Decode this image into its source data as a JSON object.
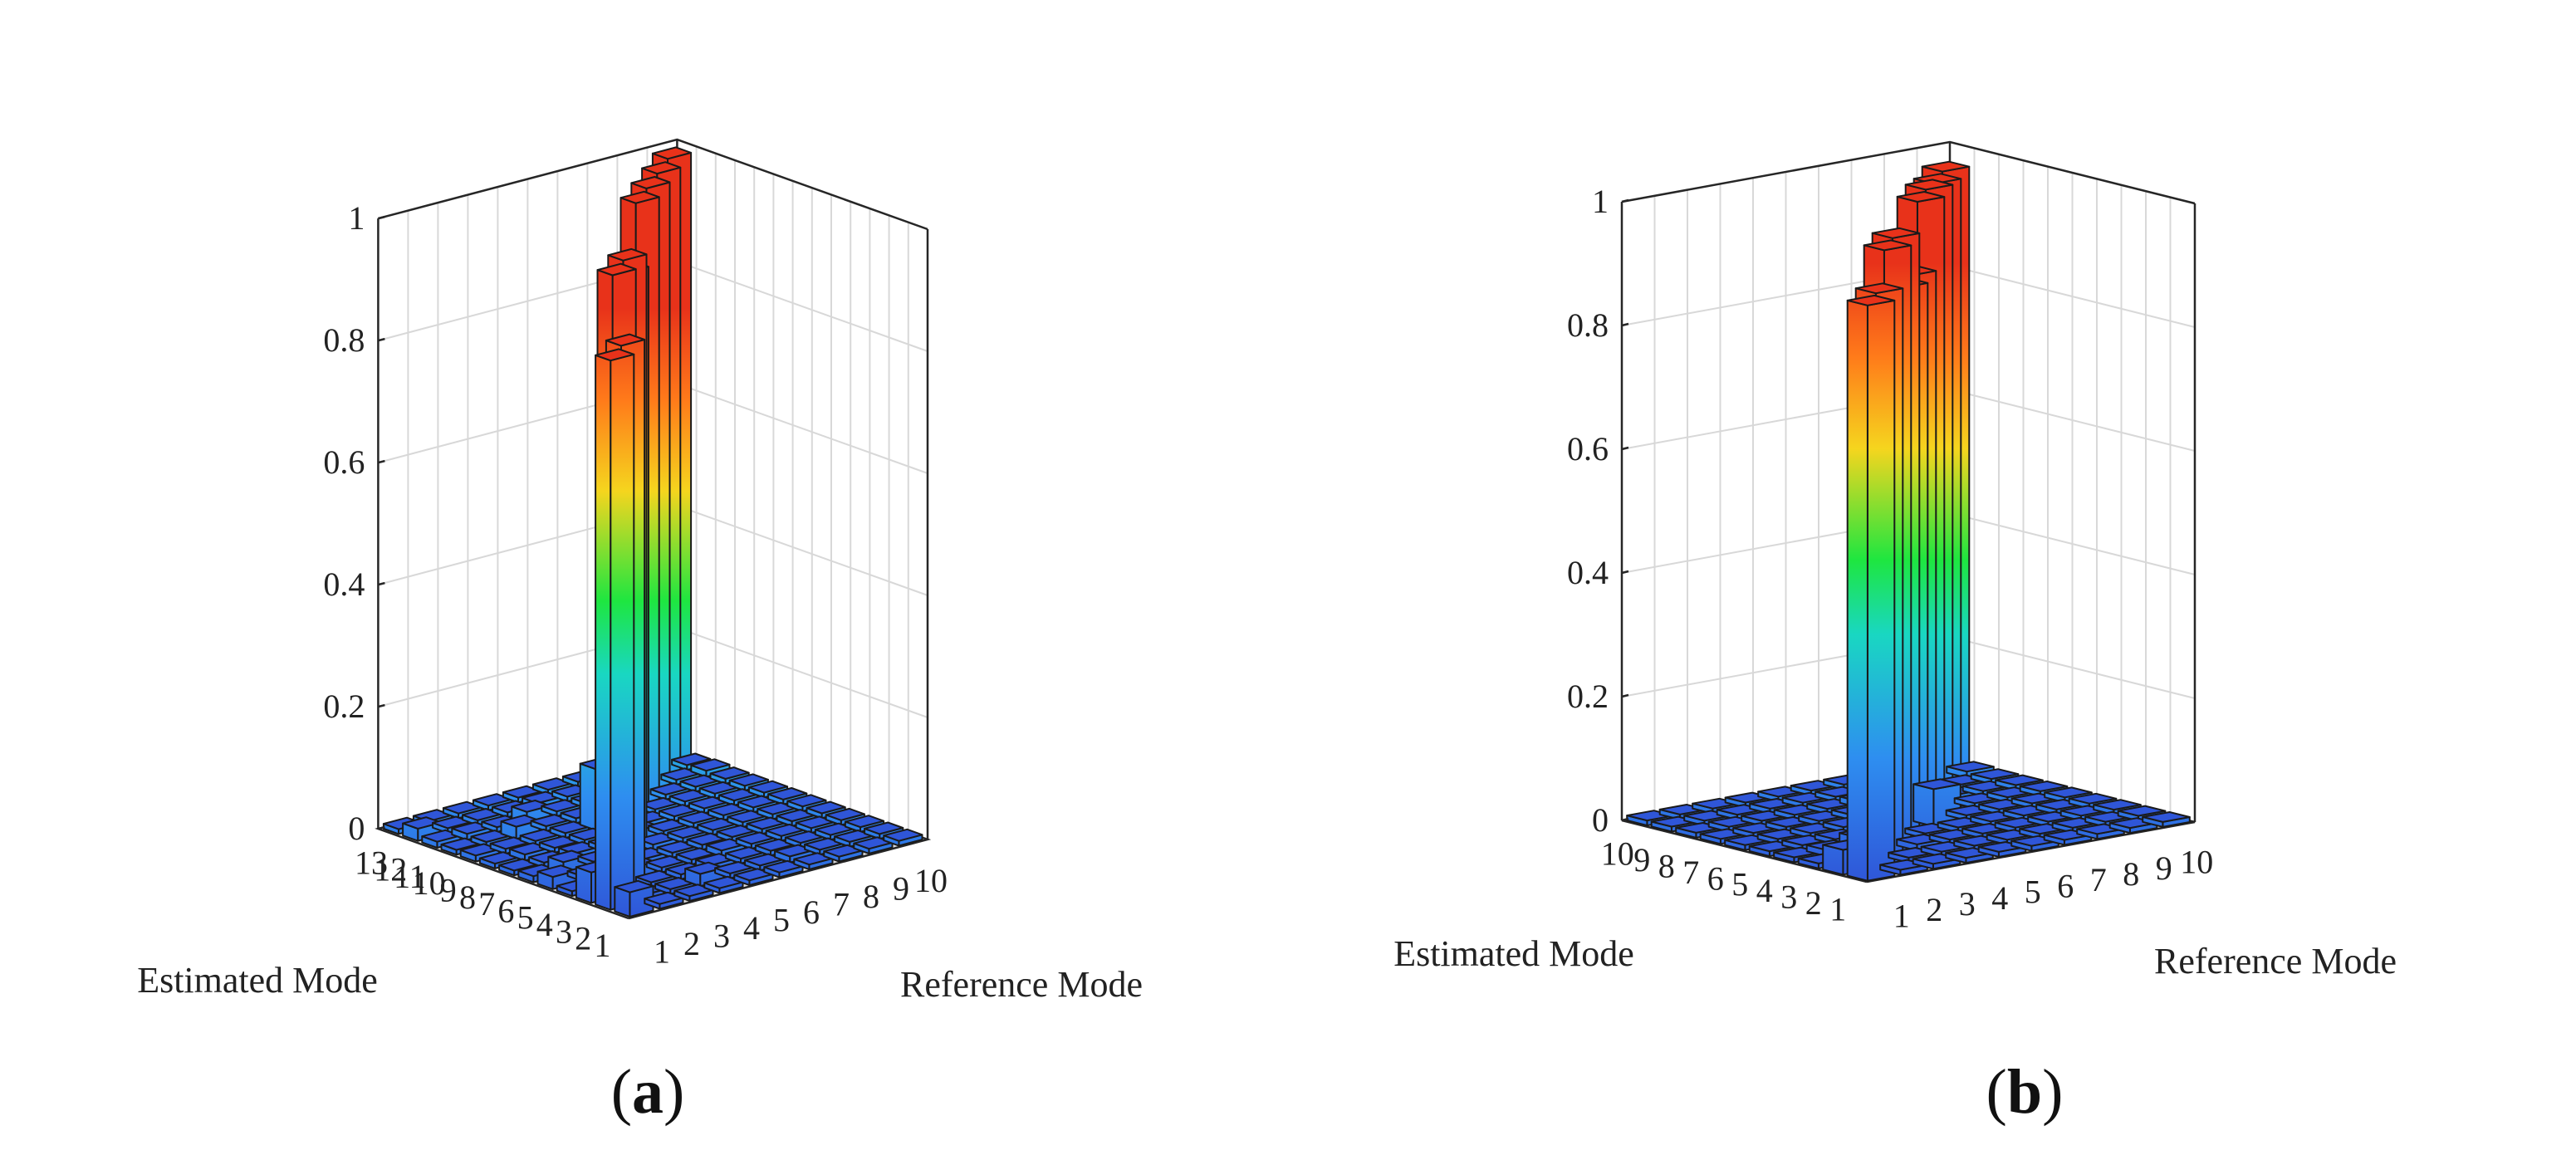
{
  "figure": {
    "panels": [
      {
        "label_open": "(",
        "letter": "a",
        "label_close": ")"
      },
      {
        "label_open": "(",
        "letter": "b",
        "label_close": ")"
      }
    ]
  },
  "colors": {
    "bar_top": "#e8321a",
    "bar_high": "#ff7a1a",
    "bar_mid_high": "#f5d51e",
    "bar_mid": "#1ee640",
    "bar_mid_low": "#19d7c2",
    "bar_low": "#2e8ef0",
    "bar_base": "#2f56d8"
  },
  "chart_data": [
    {
      "type": "bar3d",
      "panel": "a",
      "xlabel": "Estimated Mode",
      "ylabel": "Reference Mode",
      "zlim": [
        0,
        1
      ],
      "zticks": [
        "0",
        "0.2",
        "0.4",
        "0.6",
        "0.8",
        "1"
      ],
      "estimated_modes": [
        "1",
        "2",
        "3",
        "4",
        "5",
        "6",
        "7",
        "8",
        "9",
        "10",
        "11",
        "12",
        "13"
      ],
      "reference_modes": [
        "1",
        "2",
        "3",
        "4",
        "5",
        "6",
        "7",
        "8",
        "9",
        "10"
      ],
      "values": [
        [
          0.04,
          0.0,
          0.0,
          0.0,
          0.0,
          0.0,
          0.0,
          0.0,
          0.0,
          0.0
        ],
        [
          0.9,
          0.01,
          0.0,
          0.02,
          0.0,
          0.0,
          0.01,
          0.0,
          0.0,
          0.0
        ],
        [
          0.05,
          0.9,
          0.0,
          0.0,
          0.01,
          0.0,
          0.0,
          0.0,
          0.0,
          0.0
        ],
        [
          0.0,
          0.02,
          0.02,
          0.0,
          0.0,
          0.01,
          0.0,
          0.0,
          0.0,
          0.0
        ],
        [
          0.02,
          0.0,
          0.98,
          0.01,
          0.0,
          0.0,
          0.0,
          0.0,
          0.0,
          0.0
        ],
        [
          0.01,
          0.02,
          0.0,
          0.98,
          0.01,
          0.0,
          0.0,
          0.0,
          0.0,
          0.0
        ],
        [
          0.0,
          0.0,
          0.01,
          0.0,
          0.02,
          0.0,
          0.0,
          0.0,
          0.0,
          0.0
        ],
        [
          0.0,
          0.01,
          0.0,
          0.0,
          0.9,
          0.01,
          0.0,
          0.0,
          0.0,
          0.0
        ],
        [
          0.01,
          0.0,
          0.0,
          0.0,
          0.1,
          0.9,
          0.0,
          0.0,
          0.0,
          0.0
        ],
        [
          0.0,
          0.0,
          0.02,
          0.0,
          0.0,
          0.0,
          0.99,
          0.0,
          0.0,
          0.0
        ],
        [
          0.01,
          0.01,
          0.0,
          0.02,
          0.0,
          0.0,
          0.01,
          0.99,
          0.0,
          0.01
        ],
        [
          0.02,
          0.0,
          0.0,
          0.0,
          0.01,
          0.0,
          0.0,
          0.01,
          0.99,
          0.0
        ],
        [
          0.0,
          0.0,
          0.0,
          0.0,
          0.0,
          0.0,
          0.0,
          0.0,
          0.0,
          0.99
        ]
      ]
    },
    {
      "type": "bar3d",
      "panel": "b",
      "xlabel": "Estimated Mode",
      "ylabel": "Reference Mode",
      "zlim": [
        0,
        1
      ],
      "zticks": [
        "0",
        "0.2",
        "0.4",
        "0.6",
        "0.8",
        "1"
      ],
      "estimated_modes": [
        "1",
        "2",
        "3",
        "4",
        "5",
        "6",
        "7",
        "8",
        "9",
        "10"
      ],
      "reference_modes": [
        "1",
        "2",
        "3",
        "4",
        "5",
        "6",
        "7",
        "8",
        "9",
        "10"
      ],
      "values": [
        [
          0.93,
          0.0,
          0.0,
          0.0,
          0.0,
          0.0,
          0.0,
          0.0,
          0.0,
          0.0
        ],
        [
          0.04,
          0.93,
          0.0,
          0.0,
          0.0,
          0.0,
          0.0,
          0.0,
          0.0,
          0.0
        ],
        [
          0.0,
          0.0,
          0.98,
          0.01,
          0.0,
          0.0,
          0.0,
          0.0,
          0.0,
          0.0
        ],
        [
          0.0,
          0.01,
          0.02,
          0.98,
          0.0,
          0.0,
          0.0,
          0.0,
          0.0,
          0.0
        ],
        [
          0.0,
          0.0,
          0.0,
          0.0,
          0.88,
          0.06,
          0.0,
          0.0,
          0.0,
          0.0
        ],
        [
          0.0,
          0.0,
          0.0,
          0.0,
          0.1,
          0.88,
          0.0,
          0.0,
          0.0,
          0.0
        ],
        [
          0.0,
          0.0,
          0.0,
          0.0,
          0.0,
          0.0,
          0.98,
          0.01,
          0.0,
          0.0
        ],
        [
          0.0,
          0.0,
          0.0,
          0.0,
          0.0,
          0.01,
          0.02,
          0.98,
          0.0,
          0.0
        ],
        [
          0.0,
          0.0,
          0.0,
          0.0,
          0.0,
          0.0,
          0.0,
          0.0,
          0.97,
          0.01
        ],
        [
          0.0,
          0.0,
          0.0,
          0.0,
          0.0,
          0.0,
          0.0,
          0.0,
          0.0,
          0.97
        ]
      ]
    }
  ]
}
